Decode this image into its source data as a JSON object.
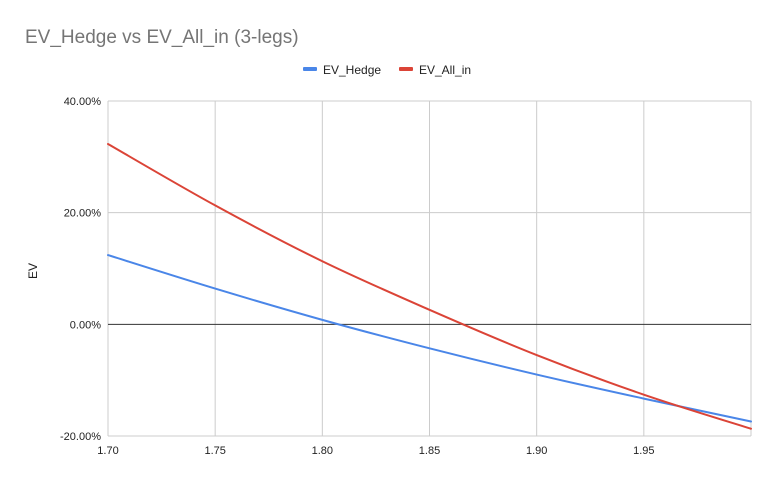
{
  "chart_data": {
    "type": "line",
    "title": "EV_Hedge vs EV_All_in (3-legs)",
    "xlabel": "",
    "ylabel": "EV",
    "xlim": [
      1.7,
      2.0
    ],
    "ylim": [
      -20,
      40
    ],
    "x_ticks": [
      "1.70",
      "1.75",
      "1.80",
      "1.85",
      "1.90",
      "1.95"
    ],
    "x_tick_values": [
      1.7,
      1.75,
      1.8,
      1.85,
      1.9,
      1.95
    ],
    "y_ticks": [
      "-20.00%",
      "0.00%",
      "20.00%",
      "40.00%"
    ],
    "y_tick_values": [
      -20,
      0,
      20,
      40
    ],
    "grid": true,
    "legend_position": "top-center",
    "series": [
      {
        "name": "EV_Hedge",
        "color": "#4a86e8",
        "x": [
          1.7,
          1.75,
          1.8,
          1.85,
          1.9,
          1.95,
          2.0
        ],
        "y": [
          12.4,
          6.4,
          0.8,
          -4.3,
          -9.0,
          -13.3,
          -17.4
        ]
      },
      {
        "name": "EV_All_in",
        "color": "#db4437",
        "x": [
          1.7,
          1.75,
          1.8,
          1.85,
          1.9,
          1.95,
          2.0
        ],
        "y": [
          32.3,
          21.3,
          11.3,
          2.6,
          -5.5,
          -12.6,
          -18.7
        ]
      }
    ]
  }
}
